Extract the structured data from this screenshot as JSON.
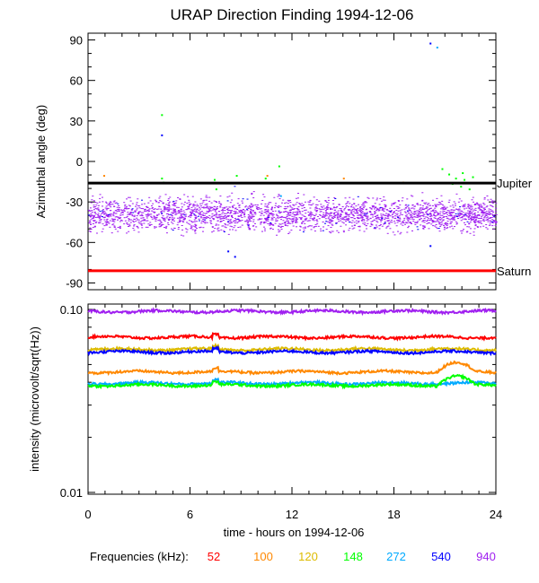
{
  "chart_data": [
    {
      "type": "scatter",
      "title": "URAP Direction Finding  1994-12-06",
      "ylabel": "Azimuthal angle (deg)",
      "xlim": [
        0,
        24
      ],
      "ylim": [
        -95,
        95
      ],
      "y_ticks": [
        "90",
        "60",
        "30",
        "0",
        "-30",
        "-60",
        "-90"
      ],
      "grid": false,
      "references": [
        {
          "name": "Jupiter",
          "value": -16,
          "color": "#000000"
        },
        {
          "name": "Saturn",
          "value": -81,
          "color": "#ff0000"
        }
      ],
      "series": [
        {
          "name": "940",
          "color": "#a020f0",
          "band_center": -39,
          "band_spread": 6
        },
        {
          "name": "148",
          "color": "#00ff00",
          "points": [
            [
              4.3,
              35
            ],
            [
              4.3,
              -12
            ],
            [
              4.4,
              -15
            ],
            [
              7.4,
              -13
            ],
            [
              7.5,
              -20
            ],
            [
              8.7,
              -10
            ],
            [
              10.4,
              -12
            ],
            [
              11.2,
              -3
            ],
            [
              20.8,
              -5
            ],
            [
              21.2,
              -9
            ],
            [
              21.6,
              -12
            ],
            [
              21.9,
              -18
            ],
            [
              22.1,
              -13
            ],
            [
              22.4,
              -20
            ],
            [
              22.6,
              -11
            ],
            [
              21.4,
              -16
            ],
            [
              22.0,
              -8
            ]
          ]
        },
        {
          "name": "272",
          "color": "#00aaff",
          "points": [
            [
              20.5,
              85
            ],
            [
              11.3,
              -25
            ]
          ]
        },
        {
          "name": "540",
          "color": "#0000ff",
          "points": [
            [
              20.1,
              88
            ],
            [
              4.3,
              20
            ],
            [
              8.2,
              -66
            ],
            [
              8.6,
              -70
            ],
            [
              20.1,
              -62
            ]
          ]
        },
        {
          "name": "100",
          "color": "#ff8800",
          "points": [
            [
              0.9,
              -10
            ],
            [
              10.5,
              -10
            ],
            [
              15.0,
              -12
            ],
            [
              18.5,
              -15
            ]
          ]
        }
      ]
    },
    {
      "type": "line",
      "ylabel": "intensity (microvolt/sqrt(Hz))",
      "xlabel": "time - hours on 1994-12-06",
      "xlim": [
        0,
        24
      ],
      "x_ticks": [
        "0",
        "6",
        "12",
        "18",
        "24"
      ],
      "ylim": [
        0.01,
        0.1
      ],
      "y_scale": "log",
      "y_ticks": [
        "0.10",
        "0.01"
      ],
      "series": [
        {
          "name": "940",
          "color": "#a020f0",
          "baseline": 0.0975
        },
        {
          "name": "52",
          "color": "#ff0000",
          "baseline": 0.0705
        },
        {
          "name": "120",
          "color": "#ddbb00",
          "baseline": 0.0605
        },
        {
          "name": "540",
          "color": "#0000ff",
          "baseline": 0.0585
        },
        {
          "name": "100",
          "color": "#ff8800",
          "baseline": 0.0455
        },
        {
          "name": "272",
          "color": "#00aaff",
          "baseline": 0.0395
        },
        {
          "name": "148",
          "color": "#00ff00",
          "baseline": 0.0385
        }
      ]
    }
  ],
  "legend": {
    "label": "Frequencies (kHz):",
    "items": [
      {
        "text": "52",
        "color": "#ff0000"
      },
      {
        "text": "100",
        "color": "#ff8800"
      },
      {
        "text": "120",
        "color": "#ddbb00"
      },
      {
        "text": "148",
        "color": "#00ff00"
      },
      {
        "text": "272",
        "color": "#00aaff"
      },
      {
        "text": "540",
        "color": "#0000ff"
      },
      {
        "text": "940",
        "color": "#a020f0"
      }
    ]
  }
}
